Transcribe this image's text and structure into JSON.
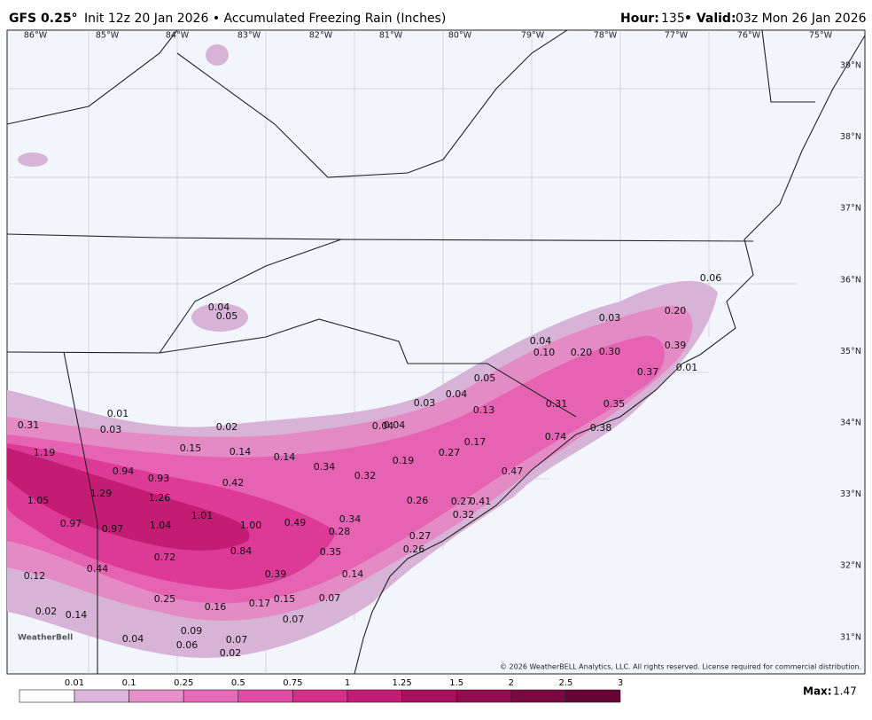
{
  "header": {
    "model": "GFS 0.25°",
    "title": "Init 12z 20 Jan 2026 • Accumulated Freezing Rain (Inches)",
    "hour_label": "Hour:",
    "hour": "135",
    "valid_label": "• Valid:",
    "valid": "03z Mon 26 Jan 2026"
  },
  "longitudes": [
    "86°W",
    "85°W",
    "84°W",
    "83°W",
    "82°W",
    "81°W",
    "80°W",
    "79°W",
    "78°W",
    "77°W",
    "76°W",
    "75°W"
  ],
  "latitudes": [
    "39°N",
    "38°N",
    "37°N",
    "36°N",
    "35°N",
    "34°N",
    "33°N",
    "32°N",
    "31°N"
  ],
  "points": [
    "0.04",
    "0.05",
    "0.06",
    "0.20",
    "0.03",
    "0.04",
    "0.10",
    "0.20",
    "0.30",
    "0.39",
    "0.37",
    "0.01",
    "0.05",
    "0.04",
    "0.03",
    "0.13",
    "0.31",
    "0.35",
    "0.38",
    "0.74",
    "0.01",
    "0.03",
    "0.31",
    "0.02",
    "0.04",
    "0.04",
    "0.17",
    "0.15",
    "0.14",
    "0.14",
    "0.27",
    "0.19",
    "0.34",
    "0.47",
    "1.19",
    "0.94",
    "0.93",
    "0.32",
    "0.42",
    "1.29",
    "1.26",
    "1.05",
    "0.26",
    "0.27",
    "0.41",
    "0.32",
    "1.01",
    "0.34",
    "0.97",
    "0.97",
    "1.04",
    "1.00",
    "0.49",
    "0.28",
    "0.27",
    "0.72",
    "0.84",
    "0.35",
    "0.26",
    "0.44",
    "0.12",
    "0.39",
    "0.14",
    "0.25",
    "0.17",
    "0.15",
    "0.07",
    "0.16",
    "0.02",
    "0.14",
    "0.07",
    "0.09",
    "0.04",
    "0.07",
    "0.06",
    "0.02"
  ],
  "logo": "WeatherBell",
  "copyright": "© 2026 WeatherBELL Analytics, LLC. All rights reserved. License required for commercial distribution.",
  "colorbar": {
    "ticks": [
      0.01,
      0.1,
      0.25,
      0.5,
      0.75,
      1,
      1.25,
      1.5,
      2,
      2.5,
      3
    ],
    "colors": [
      "#ffffff",
      "#dcb6dc",
      "#e68fc8",
      "#e76bb8",
      "#e24aa6",
      "#d92d8a",
      "#c51b74",
      "#ac115f",
      "#940b4e",
      "#7c0841",
      "#660533"
    ]
  },
  "max_label": "Max:",
  "max": "1.47"
}
